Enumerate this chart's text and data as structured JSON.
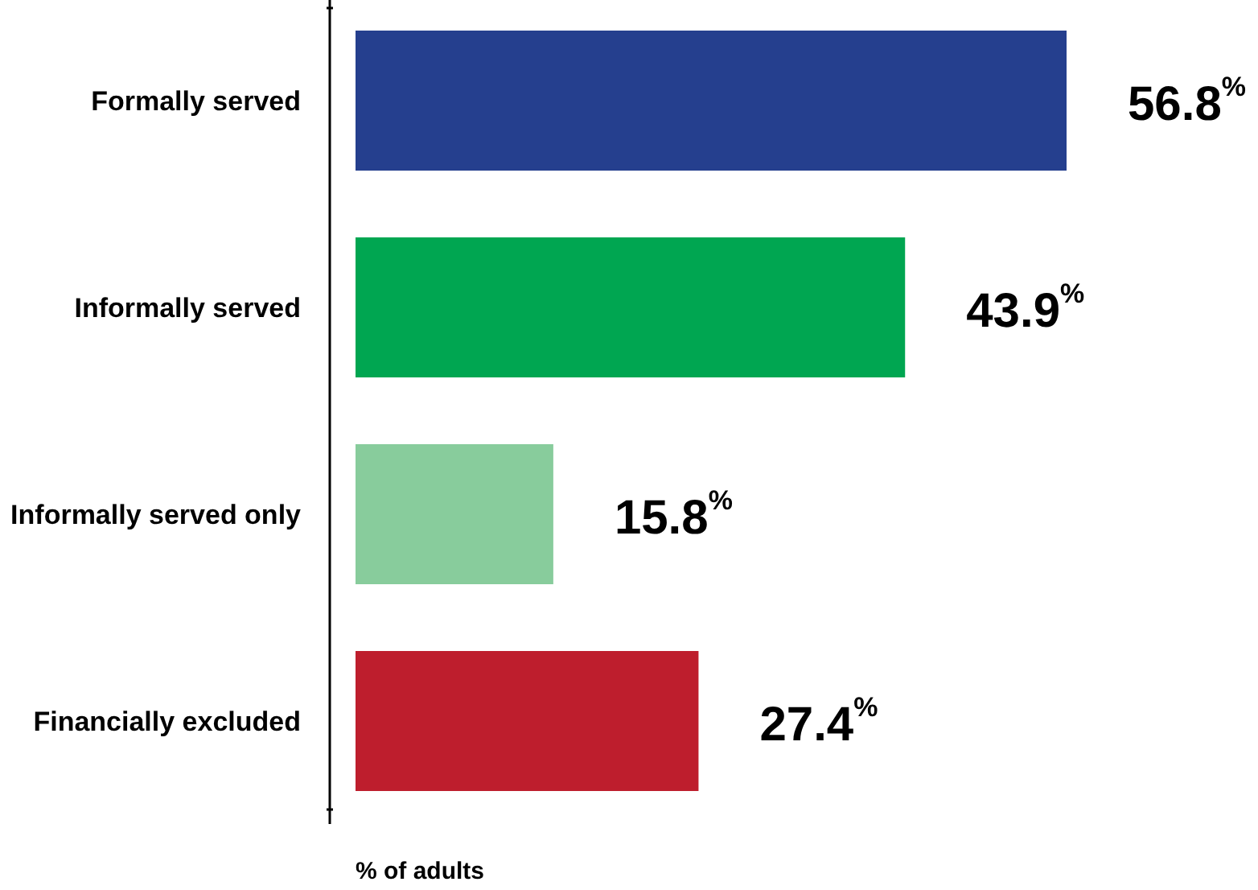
{
  "chart_data": {
    "type": "bar",
    "orientation": "horizontal",
    "categories": [
      "Formally served",
      "Informally served",
      "Informally served only",
      "Financially excluded"
    ],
    "values": [
      56.8,
      43.9,
      15.8,
      27.4
    ],
    "colors": [
      "#253f8e",
      "#00a651",
      "#88cc9c",
      "#be1e2d"
    ],
    "value_labels": [
      "56.8$^{%}$",
      "43.9$^{%}$",
      "15.8$^{%}$",
      "27.4$^{%}$"
    ],
    "xlabel": "% of adults"
  }
}
